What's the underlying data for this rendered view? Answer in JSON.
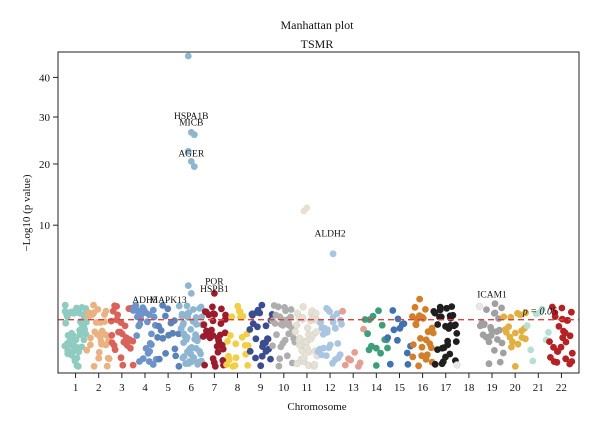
{
  "chart_data": {
    "type": "scatter",
    "title": "Manhattan plot",
    "subtitle": "TSMR",
    "xlabel": "Chromosome",
    "ylabel": "−Log10 (p value)",
    "y_scale": "sqrt",
    "ylim": [
      0,
      46
    ],
    "y_ticks": [
      10,
      20,
      30,
      40
    ],
    "threshold": {
      "label": "p = 0.05",
      "value": 1.3,
      "color": "#e0413a"
    },
    "grid": false,
    "legend": "none",
    "chromosomes": [
      {
        "label": "1",
        "color": "#8fcbc0"
      },
      {
        "label": "2",
        "color": "#ebb281"
      },
      {
        "label": "3",
        "color": "#d9635a"
      },
      {
        "label": "4",
        "color": "#6e93c9"
      },
      {
        "label": "5",
        "color": "#5b83b8"
      },
      {
        "label": "6",
        "color": "#8fb6d0"
      },
      {
        "label": "7",
        "color": "#9b1c2c"
      },
      {
        "label": "8",
        "color": "#f2cf48"
      },
      {
        "label": "9",
        "color": "#3b4d8e"
      },
      {
        "label": "10",
        "color": "#aeaeae"
      },
      {
        "label": "11",
        "color": "#e6e1d2"
      },
      {
        "label": "12",
        "color": "#a9c5e1"
      },
      {
        "label": "13",
        "color": "#e49e92"
      },
      {
        "label": "14",
        "color": "#3f9d7c"
      },
      {
        "label": "15",
        "color": "#4071b0"
      },
      {
        "label": "16",
        "color": "#d27f2c"
      },
      {
        "label": "17",
        "color": "#1f1f1f"
      },
      {
        "label": "18",
        "color": "#e8e8e8"
      },
      {
        "label": "19",
        "color": "#a0a0a0"
      },
      {
        "label": "20",
        "color": "#e2b03f"
      },
      {
        "label": "21",
        "color": "#b7dfd3"
      },
      {
        "label": "22",
        "color": "#b52124"
      }
    ],
    "points_per_chr": [
      52,
      30,
      28,
      30,
      18,
      48,
      36,
      22,
      26,
      30,
      38,
      28,
      8,
      14,
      12,
      24,
      30,
      2,
      24,
      18,
      8,
      26
    ],
    "highlight_points": [
      {
        "chr": 6,
        "y": 46
      },
      {
        "chr": 6,
        "y": 26.5
      },
      {
        "chr": 6,
        "y": 26
      },
      {
        "chr": 6,
        "y": 22.5
      },
      {
        "chr": 6,
        "y": 20.5
      },
      {
        "chr": 6,
        "y": 19.5
      },
      {
        "chr": 11,
        "y": 12
      },
      {
        "chr": 11,
        "y": 12.5
      },
      {
        "chr": 12,
        "y": 6.5
      },
      {
        "chr": 6,
        "y": 3.5
      },
      {
        "chr": 7,
        "y": 2.9
      },
      {
        "chr": 19,
        "y": 2.2
      },
      {
        "chr": 16,
        "y": 2.5
      },
      {
        "chr": 6,
        "y": 2.9
      }
    ],
    "annotations": [
      {
        "text": "HSPA1B",
        "chr": 6,
        "y": 29.5
      },
      {
        "text": "MICB",
        "chr": 6,
        "y": 28.0
      },
      {
        "text": "AGER",
        "chr": 6,
        "y": 21.5
      },
      {
        "text": "ALDH2",
        "chr": 12,
        "y": 8.5
      },
      {
        "text": "POR",
        "chr": 7,
        "y": 3.6
      },
      {
        "text": "HSPB1",
        "chr": 7,
        "y": 3.0
      },
      {
        "text": "ADH5",
        "chr": 4,
        "y": 2.25
      },
      {
        "text": "MAPK13",
        "chr": 5,
        "y": 2.25
      },
      {
        "text": "ICAM1",
        "chr": 19,
        "y": 2.6
      }
    ]
  }
}
